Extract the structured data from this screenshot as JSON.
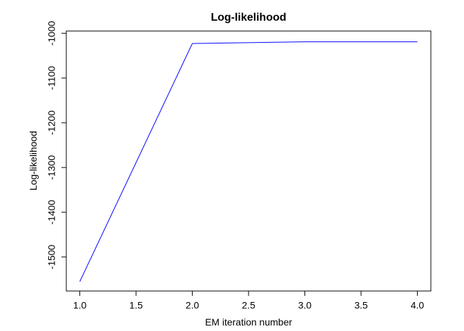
{
  "chart_data": {
    "type": "line",
    "title": "Log-likelihood",
    "x_label": "EM iteration number",
    "y_label": "Log-likelihood",
    "x": [
      1,
      2,
      3,
      4
    ],
    "series": [
      {
        "name": "Log-likelihood",
        "color": "#0000ff",
        "values": [
          -1555,
          -1023,
          -1019,
          -1019
        ]
      }
    ],
    "xlim": [
      0.88,
      4.12
    ],
    "xticks": [
      {
        "value": 1,
        "label": "1.0"
      },
      {
        "value": 1.5,
        "label": "1.5"
      },
      {
        "value": 2,
        "label": "2.0"
      },
      {
        "value": 2.5,
        "label": "2.5"
      },
      {
        "value": 3,
        "label": "3.0"
      },
      {
        "value": 3.5,
        "label": "3.5"
      },
      {
        "value": 4,
        "label": "4.0"
      }
    ],
    "ylim": [
      -1576,
      -995
    ],
    "yticks": [
      -1000,
      -1100,
      -1200,
      -1300,
      -1400,
      -1500
    ],
    "grid": false
  }
}
